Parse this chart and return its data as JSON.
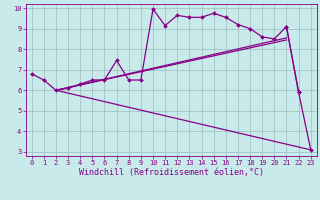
{
  "line1_x": [
    0,
    1,
    2,
    3,
    4,
    5,
    6,
    7,
    8,
    9,
    10,
    11,
    12,
    13,
    14,
    15,
    16,
    17,
    18,
    19,
    20,
    21,
    22
  ],
  "line1_y": [
    6.8,
    6.5,
    6.0,
    6.1,
    6.3,
    6.5,
    6.5,
    7.45,
    6.5,
    6.5,
    9.95,
    9.15,
    9.65,
    9.55,
    9.55,
    9.75,
    9.55,
    9.2,
    9.0,
    8.6,
    8.5,
    9.1,
    5.9
  ],
  "line2_x": [
    2,
    21
  ],
  "line2_y": [
    6.0,
    8.55
  ],
  "line3_x": [
    2,
    21
  ],
  "line3_y": [
    6.0,
    8.45
  ],
  "line4_x": [
    2,
    23
  ],
  "line4_y": [
    6.0,
    3.1
  ],
  "line5_x": [
    21,
    22,
    23
  ],
  "line5_y": [
    9.1,
    5.9,
    3.1
  ],
  "color": "#880088",
  "bg_color": "#c8eaea",
  "grid_color": "#9bbdbd",
  "xlabel": "Windchill (Refroidissement éolien,°C)",
  "xlim": [
    -0.5,
    23.5
  ],
  "ylim": [
    2.8,
    10.2
  ],
  "yticks": [
    3,
    4,
    5,
    6,
    7,
    8,
    9,
    10
  ],
  "xticks": [
    0,
    1,
    2,
    3,
    4,
    5,
    6,
    7,
    8,
    9,
    10,
    11,
    12,
    13,
    14,
    15,
    16,
    17,
    18,
    19,
    20,
    21,
    22,
    23
  ],
  "marker": "D",
  "markersize": 2.0,
  "linewidth": 0.9,
  "xlabel_fontsize": 6.0,
  "tick_fontsize": 5.0
}
